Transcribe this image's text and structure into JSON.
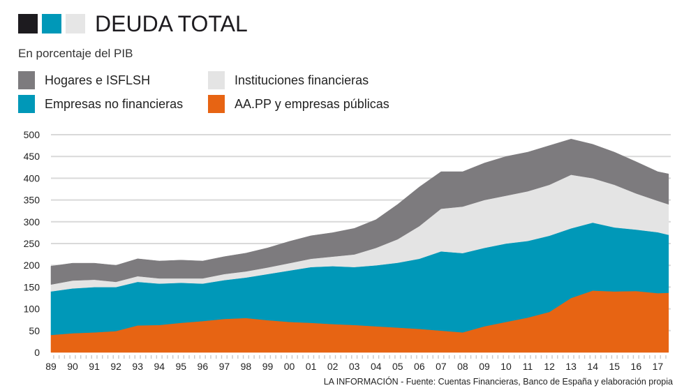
{
  "header": {
    "title": "DEUDA TOTAL",
    "subtitle": "En porcentaje del PIB",
    "title_squares": [
      "#1d1b1f",
      "#0098b8",
      "#e6e6e6"
    ]
  },
  "legend": [
    {
      "label": "Hogares e ISFLSH",
      "color": "#7d7b7e"
    },
    {
      "label": "Instituciones financieras",
      "color": "#e4e4e4"
    },
    {
      "label": "Empresas no financieras",
      "color": "#0098b8"
    },
    {
      "label": "AA.PP y empresas públicas",
      "color": "#e76413"
    }
  ],
  "source": "LA INFORMACIÓN - Fuente: Cuentas Financieras, Banco de España y elaboración propia",
  "chart_data": {
    "type": "area",
    "stacked": true,
    "title": "DEUDA TOTAL",
    "subtitle": "En porcentaje del PIB",
    "xlabel": "",
    "ylabel": "% del PIB",
    "ylim": [
      0,
      500
    ],
    "yticks": [
      0,
      50,
      100,
      150,
      200,
      250,
      300,
      350,
      400,
      450,
      500
    ],
    "grid": true,
    "legend_position": "top",
    "x": [
      1989,
      1990,
      1991,
      1992,
      1993,
      1994,
      1995,
      1996,
      1997,
      1998,
      1999,
      2000,
      2001,
      2002,
      2003,
      2004,
      2005,
      2006,
      2007,
      2008,
      2009,
      2010,
      2011,
      2012,
      2013,
      2014,
      2015,
      2016,
      2017,
      2017.5
    ],
    "xlim": [
      1989,
      2017.6
    ],
    "xtick_labels": [
      "89",
      "90",
      "91",
      "92",
      "93",
      "94",
      "95",
      "96",
      "97",
      "98",
      "99",
      "00",
      "01",
      "02",
      "03",
      "04",
      "05",
      "06",
      "07",
      "08",
      "09",
      "10",
      "11",
      "12",
      "13",
      "14",
      "15",
      "16",
      "17"
    ],
    "series": [
      {
        "name": "AA.PP y empresas públicas",
        "color": "#e76413",
        "values": [
          40,
          44,
          46,
          49,
          62,
          63,
          68,
          72,
          77,
          79,
          74,
          70,
          68,
          65,
          63,
          60,
          57,
          54,
          50,
          46,
          60,
          70,
          80,
          93,
          125,
          142,
          140,
          141,
          136,
          137
        ]
      },
      {
        "name": "Empresas no financieras",
        "color": "#0098b8",
        "values": [
          100,
          103,
          104,
          101,
          100,
          95,
          92,
          86,
          89,
          93,
          106,
          118,
          128,
          133,
          133,
          140,
          149,
          161,
          182,
          182,
          180,
          180,
          176,
          175,
          160,
          156,
          147,
          141,
          140,
          133
        ]
      },
      {
        "name": "Instituciones financieras",
        "color": "#e4e4e4",
        "values": [
          16,
          18,
          17,
          12,
          13,
          12,
          10,
          12,
          14,
          14,
          15,
          17,
          19,
          22,
          29,
          40,
          54,
          75,
          98,
          107,
          110,
          110,
          114,
          117,
          123,
          102,
          98,
          83,
          72,
          70
        ]
      },
      {
        "name": "Hogares e ISFLSH",
        "color": "#7d7b7e",
        "values": [
          42,
          40,
          38,
          38,
          40,
          40,
          42,
          40,
          40,
          42,
          45,
          50,
          53,
          55,
          60,
          65,
          80,
          90,
          85,
          80,
          85,
          90,
          90,
          90,
          82,
          78,
          75,
          73,
          67,
          70
        ]
      }
    ]
  }
}
